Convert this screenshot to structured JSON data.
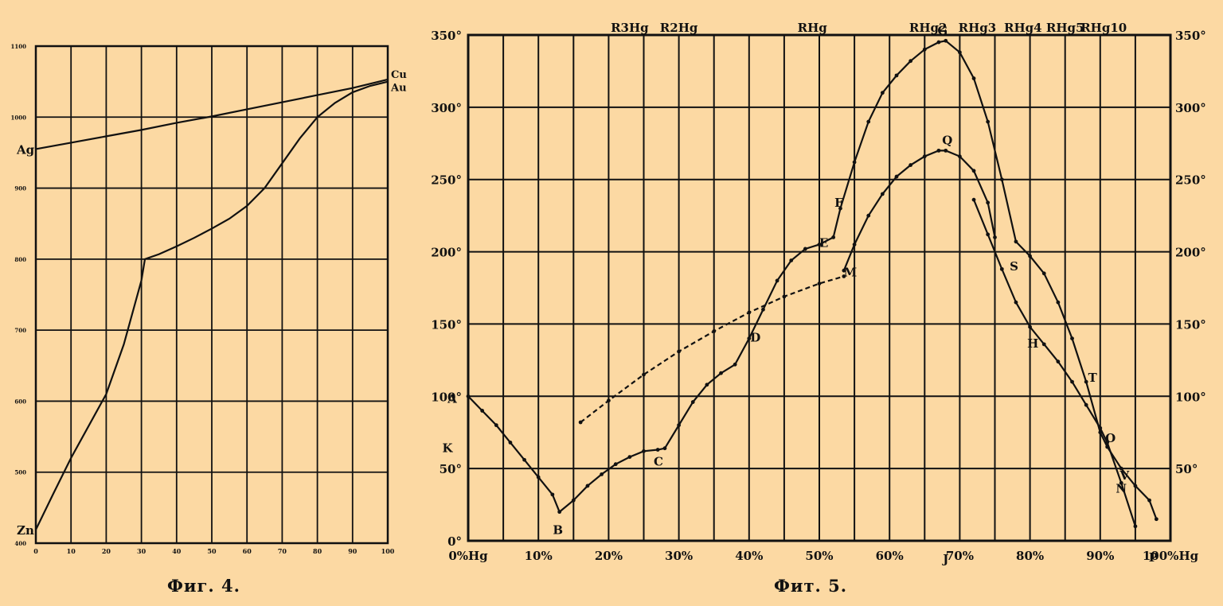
{
  "chart_data": [
    {
      "type": "line",
      "caption": "Фиг. 4.",
      "xlim": [
        0,
        100
      ],
      "ylim": [
        400,
        1100
      ],
      "x_ticks": [
        "0",
        "10",
        "20",
        "30",
        "40",
        "50",
        "60",
        "70",
        "80",
        "90",
        "100"
      ],
      "y_ticks": [
        "400",
        "500",
        "600",
        "700",
        "800",
        "900",
        "1000",
        "1100"
      ],
      "series": [
        {
          "name": "Ag",
          "end_name": "Cu",
          "x": [
            0,
            10,
            20,
            30,
            40,
            50,
            60,
            70,
            80,
            90,
            95,
            100
          ],
          "y": [
            955,
            964,
            973,
            982,
            992,
            1001,
            1011,
            1021,
            1031,
            1041,
            1047,
            1053
          ]
        },
        {
          "name": "Zn",
          "end_name": "Au",
          "x": [
            0,
            5,
            10,
            15,
            20,
            25,
            30,
            31,
            35,
            40,
            45,
            50,
            55,
            60,
            65,
            70,
            75,
            80,
            85,
            90,
            95,
            100
          ],
          "y": [
            419,
            470,
            520,
            565,
            610,
            680,
            770,
            800,
            807,
            818,
            830,
            843,
            857,
            875,
            900,
            935,
            970,
            1000,
            1020,
            1035,
            1044,
            1050
          ]
        }
      ]
    },
    {
      "type": "line",
      "caption": "Фит. 5.",
      "xlim": [
        0,
        100
      ],
      "ylim": [
        0,
        350
      ],
      "x_ticks": [
        "0%Hg",
        "10%",
        "20%",
        "30%",
        "40%",
        "50%",
        "60%",
        "70%",
        "80%",
        "90%",
        "100%Hg"
      ],
      "y_ticks_left": [
        "0°",
        "50°",
        "100°",
        "150°",
        "200°",
        "250°",
        "300°",
        "350°"
      ],
      "y_ticks_right": [
        "50°",
        "100°",
        "150°",
        "200°",
        "250°",
        "300°",
        "350°"
      ],
      "compounds": [
        "R3Hg",
        "R2Hg",
        "RHg",
        "RHg2",
        "RHg3",
        "RHg4",
        "RHg5",
        "RHg10"
      ],
      "series": [
        {
          "name": "",
          "x": [
            0,
            2,
            4,
            6,
            8,
            10,
            12,
            13,
            15,
            17,
            19,
            21,
            23,
            25,
            27,
            28,
            30,
            32,
            34,
            36,
            38,
            40,
            42,
            44,
            46,
            48,
            50,
            52,
            53,
            55,
            57,
            59,
            61,
            63,
            65,
            67,
            68,
            70,
            72,
            74,
            76,
            78,
            80,
            82,
            84,
            86,
            88,
            90,
            91,
            93,
            95,
            97,
            98
          ],
          "y": [
            100,
            90,
            80,
            68,
            56,
            44,
            32,
            20,
            28,
            38,
            46,
            53,
            58,
            62,
            63,
            64,
            80,
            96,
            108,
            116,
            122,
            140,
            160,
            180,
            194,
            202,
            205,
            210,
            230,
            262,
            290,
            310,
            322,
            332,
            340,
            345,
            346,
            338,
            320,
            290,
            250,
            207,
            197,
            185,
            165,
            140,
            110,
            75,
            65,
            50,
            38,
            28,
            15
          ]
        },
        {
          "name": "",
          "x": [
            53.5,
            55,
            57,
            59,
            61,
            63,
            65,
            67,
            68,
            70,
            72,
            74,
            75
          ],
          "y": [
            187,
            205,
            225,
            240,
            252,
            260,
            266,
            270,
            270,
            266,
            256,
            234,
            210
          ]
        },
        {
          "name": "",
          "x": [
            72,
            74,
            76,
            78,
            80,
            82,
            84,
            86,
            88,
            90,
            91,
            93,
            95
          ],
          "y": [
            236,
            212,
            188,
            165,
            148,
            136,
            124,
            110,
            94,
            78,
            68,
            40,
            10
          ]
        },
        {
          "name": "",
          "x": [
            16,
            20,
            25,
            30,
            35,
            40,
            45,
            50,
            53.5
          ],
          "y": [
            82,
            97,
            115,
            131,
            145,
            158,
            169,
            178,
            183
          ]
        }
      ],
      "point_labels": [
        "A",
        "B",
        "C",
        "D",
        "E",
        "F",
        "G",
        "Q",
        "M",
        "S",
        "H",
        "T",
        "O",
        "V",
        "N",
        "K",
        "J",
        "P"
      ]
    }
  ]
}
